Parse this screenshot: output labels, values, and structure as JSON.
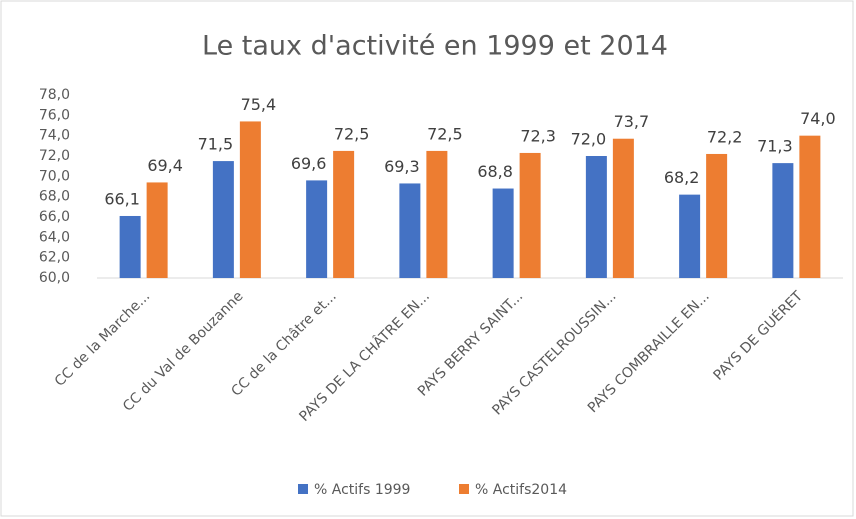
{
  "chart_data": {
    "type": "bar",
    "title": "Le taux d'activité en 1999 et 2014",
    "categories": [
      "CC de la Marche...",
      "CC du Val de Bouzanne",
      "CC de la Châtre et...",
      "PAYS DE LA CHÂTRE EN...",
      "PAYS BERRY SAINT...",
      "PAYS CASTELROUSSIN...",
      "PAYS COMBRAILLE EN...",
      "PAYS DE GUÉRET"
    ],
    "series": [
      {
        "name": "% Actifs 1999",
        "color": "#4472c4",
        "values": [
          66.1,
          71.5,
          69.6,
          69.3,
          68.8,
          72.0,
          68.2,
          71.3
        ],
        "value_labels": [
          "66,1",
          "71,5",
          "69,6",
          "69,3",
          "68,8",
          "72,0",
          "68,2",
          "71,3"
        ]
      },
      {
        "name": "% Actifs2014",
        "color": "#ed7d31",
        "values": [
          69.4,
          75.4,
          72.5,
          72.5,
          72.3,
          73.7,
          72.2,
          74.0
        ],
        "value_labels": [
          "69,4",
          "75,4",
          "72,5",
          "72,5",
          "72,3",
          "73,7",
          "72,2",
          "74,0"
        ]
      }
    ],
    "ylim": [
      60,
      78
    ],
    "yticks": [
      {
        "value": 60,
        "label": "60,0"
      },
      {
        "value": 62,
        "label": "62,0"
      },
      {
        "value": 64,
        "label": "64,0"
      },
      {
        "value": 66,
        "label": "66,0"
      },
      {
        "value": 68,
        "label": "68,0"
      },
      {
        "value": 70,
        "label": "70,0"
      },
      {
        "value": 72,
        "label": "72,0"
      },
      {
        "value": 74,
        "label": "74,0"
      },
      {
        "value": 76,
        "label": "76,0"
      },
      {
        "value": 78,
        "label": "78,0"
      }
    ],
    "grid": false,
    "legend": "bottom"
  }
}
